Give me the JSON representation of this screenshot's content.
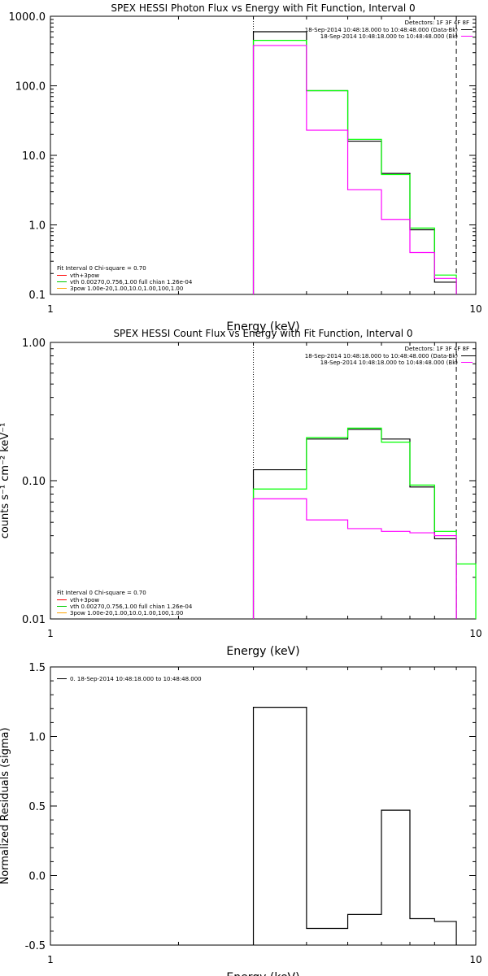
{
  "colors": {
    "axis": "#000000",
    "bkg": "#ff00ff",
    "total": "#000000",
    "fit_total": "#00ff00",
    "component_red": "#ff0000",
    "component_orange": "#ffa500",
    "component_green": "#00cc00"
  },
  "chart_data": [
    {
      "type": "line",
      "title": "SPEX HESSI Photon Flux vs Energy with Fit Function, Interval 0",
      "xlabel": "Energy (keV)",
      "ylabel": "",
      "xscale": "log",
      "yscale": "log",
      "xlim": [
        1,
        10
      ],
      "ylim": [
        0.1,
        1000
      ],
      "x_ticks": [
        "1",
        "10"
      ],
      "y_ticks": [
        "0.1",
        "1.0",
        "10.0",
        "100.0",
        "1000.0"
      ],
      "energy_edges": [
        3,
        4,
        5,
        6,
        7,
        8,
        9
      ],
      "series": [
        {
          "key": "data",
          "color": "#000000",
          "values": [
            600,
            85,
            16,
            5.5,
            0.85,
            0.15
          ]
        },
        {
          "key": "fit",
          "color": "#00ff00",
          "values": [
            450,
            85,
            17,
            5.3,
            0.9,
            0.19
          ]
        },
        {
          "key": "bkg",
          "color": "#ff00ff",
          "values": [
            380,
            23,
            3.2,
            1.2,
            0.4,
            0.17
          ]
        }
      ],
      "vlines": [
        {
          "x": 3,
          "style": "dotted"
        },
        {
          "x": 9,
          "style": "dashed"
        }
      ],
      "legend_top_right": {
        "detectors": "Detectors: 1F 3F 4F 8F",
        "lines": [
          {
            "text": "18-Sep-2014 10:48:18.000 to 10:48:48.000 (Data-Bk)",
            "color": "#000000"
          },
          {
            "text": "18-Sep-2014 10:48:18.000 to 10:48:48.000 (Bk)",
            "color": "#ff00ff"
          }
        ]
      },
      "legend_bottom_left": {
        "header": "Fit Interval 0   Chi-square = 0.70",
        "lines": [
          {
            "text": "vth+3pow",
            "color": "#ff0000"
          },
          {
            "text": "vth 0.00270,0.756,1.00  full chian 1.26e-04",
            "color": "#00cc00"
          },
          {
            "text": "3pow 1.00e-20,1.00,10.0,1.00,100,1.00",
            "color": "#ffa500"
          }
        ]
      }
    },
    {
      "type": "line",
      "title": "SPEX HESSI Count Flux vs Energy with Fit Function, Interval 0",
      "xlabel": "Energy (keV)",
      "ylabel": "counts s⁻¹ cm⁻² keV⁻¹",
      "xscale": "log",
      "yscale": "log",
      "xlim": [
        1,
        10
      ],
      "ylim": [
        0.01,
        1.0
      ],
      "x_ticks": [
        "1",
        "10"
      ],
      "y_ticks": [
        "0.01",
        "0.10",
        "1.00"
      ],
      "energy_edges": [
        3,
        4,
        5,
        6,
        7,
        8,
        9,
        10
      ],
      "series": [
        {
          "key": "data",
          "color": "#000000",
          "values": [
            0.12,
            0.2,
            0.235,
            0.2,
            0.09,
            0.038,
            null
          ]
        },
        {
          "key": "fit",
          "color": "#00ff00",
          "values": [
            0.087,
            0.205,
            0.24,
            0.19,
            0.093,
            0.043,
            0.025
          ]
        },
        {
          "key": "bkg",
          "color": "#ff00ff",
          "values": [
            0.074,
            0.052,
            0.045,
            0.043,
            0.042,
            0.04,
            null
          ]
        }
      ],
      "vlines": [
        {
          "x": 3,
          "style": "dotted"
        },
        {
          "x": 9,
          "style": "dashed"
        }
      ],
      "legend_top_right": {
        "detectors": "Detectors: 1F 3F 4F 8F",
        "lines": [
          {
            "text": "18-Sep-2014 10:48:18.000 to 10:48:48.000 (Data-Bk)",
            "color": "#000000"
          },
          {
            "text": "18-Sep-2014 10:48:18.000 to 10:48:48.000 (Bk)",
            "color": "#ff00ff"
          }
        ]
      },
      "legend_bottom_left": {
        "header": "Fit Interval 0   Chi-square = 0.70",
        "lines": [
          {
            "text": "vth+3pow",
            "color": "#ff0000"
          },
          {
            "text": "vth 0.00270,0.756,1.00  full chian 1.26e-04",
            "color": "#00cc00"
          },
          {
            "text": "3pow 1.00e-20,1.00,10.0,1.00,100,1.00",
            "color": "#ffa500"
          }
        ]
      }
    },
    {
      "type": "line",
      "title": "",
      "xlabel": "Energy (keV)",
      "ylabel": "Normalized Residuals (sigma)",
      "xscale": "log",
      "yscale": "linear",
      "xlim": [
        1,
        10
      ],
      "ylim": [
        -0.5,
        1.5
      ],
      "x_ticks": [
        "1",
        "10"
      ],
      "y_ticks": [
        "-0.5",
        "0.0",
        "0.5",
        "1.0",
        "1.5"
      ],
      "energy_edges": [
        3,
        4,
        5,
        6,
        7,
        8,
        9
      ],
      "series": [
        {
          "key": "resid",
          "color": "#000000",
          "values": [
            1.21,
            -0.38,
            -0.28,
            0.47,
            -0.31,
            -0.33
          ]
        }
      ],
      "vlines": [],
      "legend_top_left": {
        "lines": [
          {
            "text": "0. 18-Sep-2014 10:48:18.000 to 10:48:48.000",
            "color": "#000000"
          }
        ]
      }
    }
  ]
}
